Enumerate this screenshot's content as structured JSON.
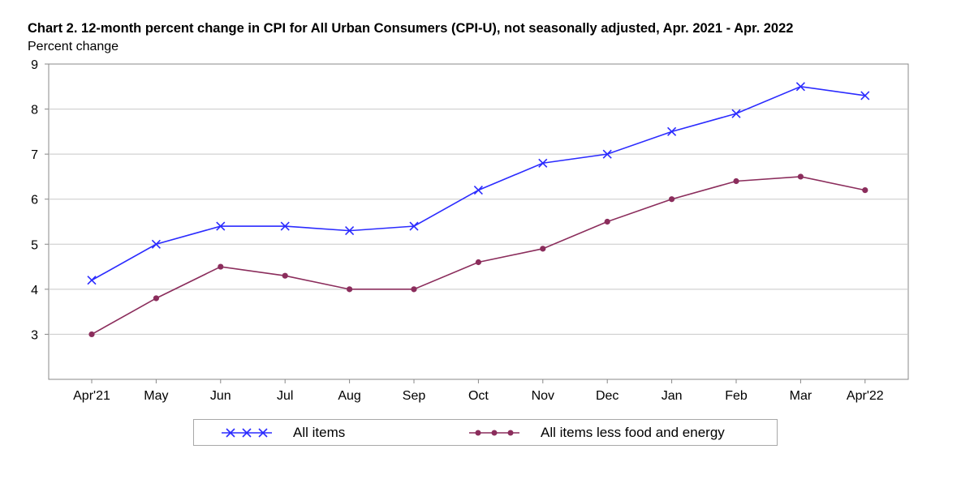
{
  "chart_data": {
    "type": "line",
    "title": "Chart 2. 12-month percent change in CPI for All Urban Consumers (CPI-U), not seasonally adjusted, Apr. 2021 - Apr. 2022",
    "ylabel": "Percent change",
    "xlabel": "",
    "categories": [
      "Apr'21",
      "May",
      "Jun",
      "Jul",
      "Aug",
      "Sep",
      "Oct",
      "Nov",
      "Dec",
      "Jan",
      "Feb",
      "Mar",
      "Apr'22"
    ],
    "ylim": [
      2,
      9
    ],
    "yticks": [
      3,
      4,
      5,
      6,
      7,
      8,
      9
    ],
    "grid": true,
    "legend_position": "bottom",
    "series": [
      {
        "name": "All items",
        "color": "#2b2bff",
        "marker": "x",
        "values": [
          4.2,
          5.0,
          5.4,
          5.4,
          5.3,
          5.4,
          6.2,
          6.8,
          7.0,
          7.5,
          7.9,
          8.5,
          8.3
        ]
      },
      {
        "name": "All items less food and energy",
        "color": "#8b2d5c",
        "marker": "circle",
        "values": [
          3.0,
          3.8,
          4.5,
          4.3,
          4.0,
          4.0,
          4.6,
          4.9,
          5.5,
          6.0,
          6.4,
          6.5,
          6.2
        ]
      }
    ]
  }
}
